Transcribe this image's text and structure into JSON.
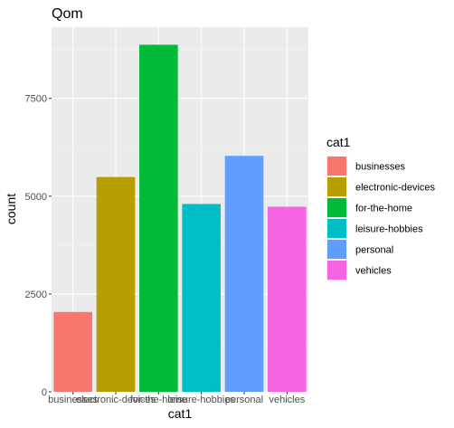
{
  "chart_data": {
    "type": "bar",
    "title": "Qom",
    "xlabel": "cat1",
    "ylabel": "count",
    "categories": [
      "businesses",
      "electronic-devices",
      "for-the-home",
      "leisure-hobbies",
      "personal",
      "vehicles"
    ],
    "values": [
      2040,
      5490,
      8870,
      4800,
      6030,
      4730
    ],
    "colors": [
      "#F8766D",
      "#B79F00",
      "#00BA38",
      "#00BFC4",
      "#619CFF",
      "#F564E3"
    ],
    "ylim": [
      0,
      9320
    ],
    "yticks": [
      0,
      2500,
      5000,
      7500
    ],
    "ytick_labels": [
      "0",
      "2500",
      "5000",
      "7500"
    ],
    "grid": true,
    "panel_background": "#EBEBEB",
    "legend": {
      "title": "cat1",
      "position": "right",
      "entries": [
        "businesses",
        "electronic-devices",
        "for-the-home",
        "leisure-hobbies",
        "personal",
        "vehicles"
      ]
    }
  }
}
